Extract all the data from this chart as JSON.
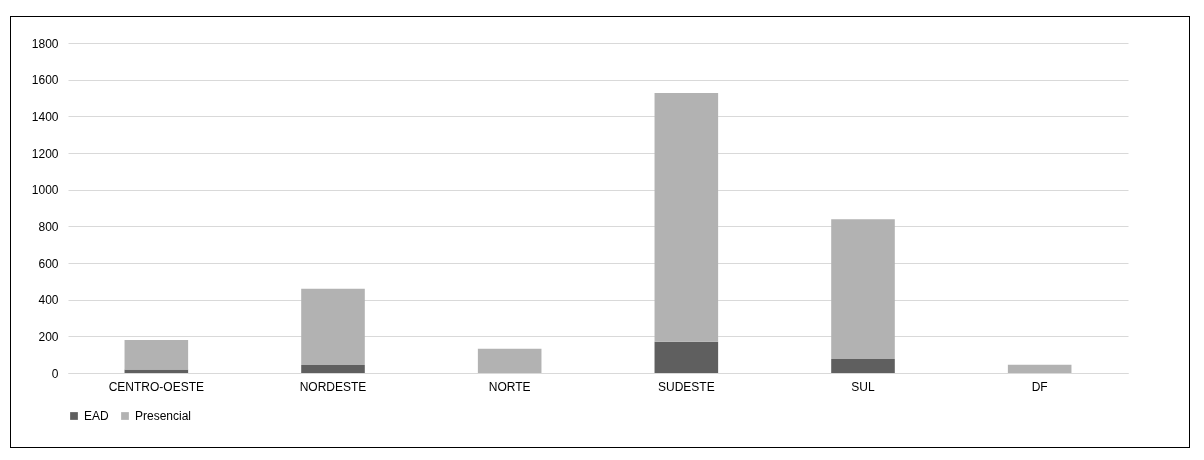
{
  "chart_data": {
    "type": "bar",
    "stacked": true,
    "categories": [
      "CENTRO-OESTE",
      "NORDESTE",
      "NORTE",
      "SUDESTE",
      "SUL",
      "DF"
    ],
    "series": [
      {
        "name": "EAD",
        "color": "#5f5f5f",
        "values": [
          19,
          44,
          0,
          170,
          77,
          0
        ]
      },
      {
        "name": "Presencial",
        "color": "#b2b2b2",
        "values": [
          161,
          415,
          132,
          1357,
          761,
          45
        ]
      }
    ],
    "ylim": [
      0,
      1800
    ],
    "yticks": [
      0,
      200,
      400,
      600,
      800,
      1000,
      1200,
      1400,
      1600,
      1800
    ],
    "grid": "y",
    "legend": "bottom"
  }
}
